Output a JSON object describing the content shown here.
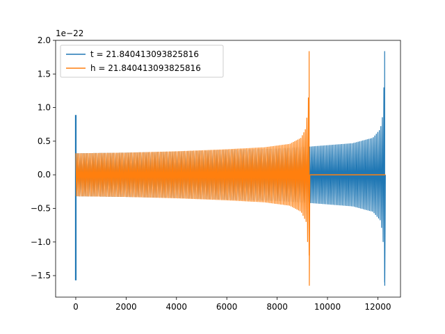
{
  "chart_data": {
    "type": "line",
    "title": "",
    "xlabel": "",
    "ylabel": "",
    "y_offset_label": "1e−22",
    "xlim": [
      -800,
      12900
    ],
    "ylim": [
      -1.82,
      2.0
    ],
    "x_ticks": [
      0,
      2000,
      4000,
      6000,
      8000,
      10000,
      12000
    ],
    "y_ticks": [
      -1.5,
      -1.0,
      -0.5,
      0.0,
      0.5,
      1.0,
      1.5,
      2.0
    ],
    "x_tick_labels": [
      "0",
      "2000",
      "4000",
      "6000",
      "8000",
      "10000",
      "12000"
    ],
    "y_tick_labels": [
      "−1.5",
      "−1.0",
      "−0.5",
      "0.0",
      "0.5",
      "1.0",
      "1.5",
      "2.0"
    ],
    "grid": false,
    "legend_position": "top-left",
    "series": [
      {
        "name": "t = 21.840413093825816",
        "color": "#1f77b4",
        "start_spike": {
          "x": 0,
          "max": 0.89,
          "min": -1.57
        },
        "envelope": [
          {
            "x": 0,
            "amp": 0.32
          },
          {
            "x": 2000,
            "amp": 0.33
          },
          {
            "x": 4000,
            "amp": 0.345
          },
          {
            "x": 6000,
            "amp": 0.37
          },
          {
            "x": 8000,
            "amp": 0.39
          },
          {
            "x": 9300,
            "amp": 0.42
          },
          {
            "x": 11000,
            "amp": 0.47
          },
          {
            "x": 11800,
            "amp": 0.55
          },
          {
            "x": 12100,
            "amp": 0.68
          },
          {
            "x": 12200,
            "amp": 0.9
          },
          {
            "x": 12270,
            "amp": 1.6
          }
        ],
        "final_spike": {
          "x": 12270,
          "max": 1.84,
          "min": -1.65
        },
        "end_x": 12300
      },
      {
        "name": "h = 21.840413093825816",
        "color": "#ff7f0e",
        "envelope": [
          {
            "x": 0,
            "amp": 0.32
          },
          {
            "x": 2000,
            "amp": 0.33
          },
          {
            "x": 4000,
            "amp": 0.35
          },
          {
            "x": 6000,
            "amp": 0.38
          },
          {
            "x": 7500,
            "amp": 0.41
          },
          {
            "x": 8500,
            "amp": 0.46
          },
          {
            "x": 8950,
            "amp": 0.55
          },
          {
            "x": 9150,
            "amp": 0.7
          },
          {
            "x": 9250,
            "amp": 1.2
          }
        ],
        "final_spike": {
          "x": 9270,
          "max": 1.84,
          "min": -1.65
        },
        "flat_segment": {
          "x_start": 9300,
          "x_end": 12300,
          "y": 0.0
        }
      }
    ]
  }
}
